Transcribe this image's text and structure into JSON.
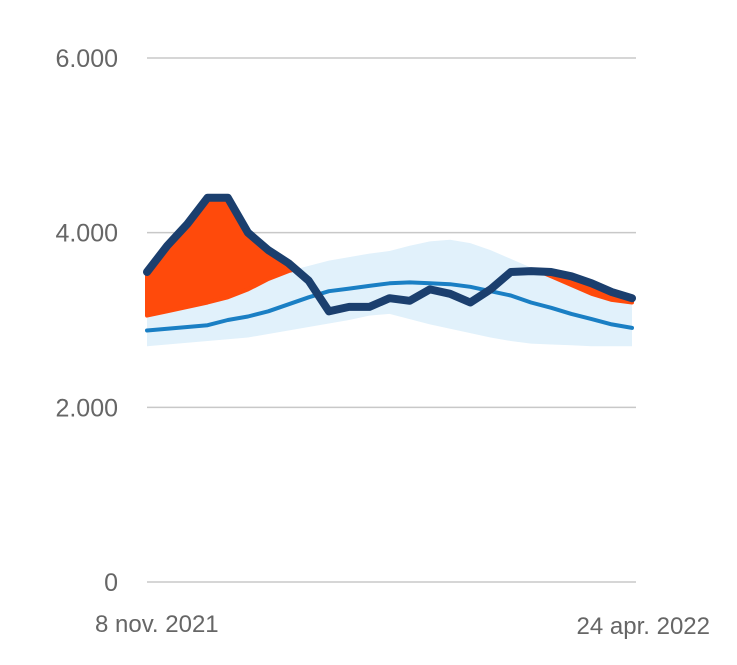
{
  "chart_data": {
    "type": "line",
    "title": "",
    "xlabel": "",
    "ylabel": "",
    "ylim": [
      0,
      6000
    ],
    "yticks": [
      {
        "value": 0,
        "label": "0"
      },
      {
        "value": 2000,
        "label": "2.000"
      },
      {
        "value": 4000,
        "label": "4.000"
      },
      {
        "value": 6000,
        "label": "6.000"
      }
    ],
    "x_start_label": "8 nov. 2021",
    "x_end_label": "24 apr. 2022",
    "x": [
      "2021-11-08",
      "2021-11-15",
      "2021-11-22",
      "2021-11-29",
      "2021-12-06",
      "2021-12-13",
      "2021-12-20",
      "2021-12-27",
      "2022-01-03",
      "2022-01-10",
      "2022-01-17",
      "2022-01-24",
      "2022-01-31",
      "2022-02-07",
      "2022-02-14",
      "2022-02-21",
      "2022-02-28",
      "2022-03-07",
      "2022-03-14",
      "2022-03-21",
      "2022-03-28",
      "2022-04-04",
      "2022-04-11",
      "2022-04-18",
      "2022-04-24"
    ],
    "grid": true,
    "legend": "none",
    "colors": {
      "observed": "#1b3f6e",
      "expected": "#1a7fc4",
      "band": "#e1f1fb",
      "excess": "#ff4a0b",
      "grid": "#c8c8c8"
    },
    "series": [
      {
        "role": "observed",
        "values": [
          3550,
          3850,
          4100,
          4400,
          4400,
          4000,
          3800,
          3650,
          3450,
          3100,
          3150,
          3150,
          3250,
          3220,
          3350,
          3300,
          3200,
          3350,
          3550,
          3560,
          3550,
          3500,
          3420,
          3320,
          3250
        ]
      },
      {
        "role": "expected",
        "values": [
          2880,
          2900,
          2920,
          2940,
          3000,
          3040,
          3100,
          3180,
          3260,
          3330,
          3360,
          3390,
          3420,
          3430,
          3420,
          3410,
          3380,
          3330,
          3280,
          3200,
          3140,
          3070,
          3010,
          2950,
          2910
        ]
      },
      {
        "role": "band",
        "lower": [
          2700,
          2720,
          2740,
          2760,
          2780,
          2800,
          2840,
          2880,
          2920,
          2960,
          3000,
          3050,
          3070,
          3010,
          2950,
          2900,
          2850,
          2800,
          2760,
          2730,
          2720,
          2710,
          2700,
          2700,
          2700
        ],
        "upper": [
          3050,
          3100,
          3150,
          3200,
          3260,
          3350,
          3470,
          3560,
          3620,
          3680,
          3720,
          3760,
          3790,
          3850,
          3900,
          3920,
          3880,
          3800,
          3700,
          3600,
          3500,
          3400,
          3300,
          3230,
          3200
        ]
      }
    ]
  }
}
